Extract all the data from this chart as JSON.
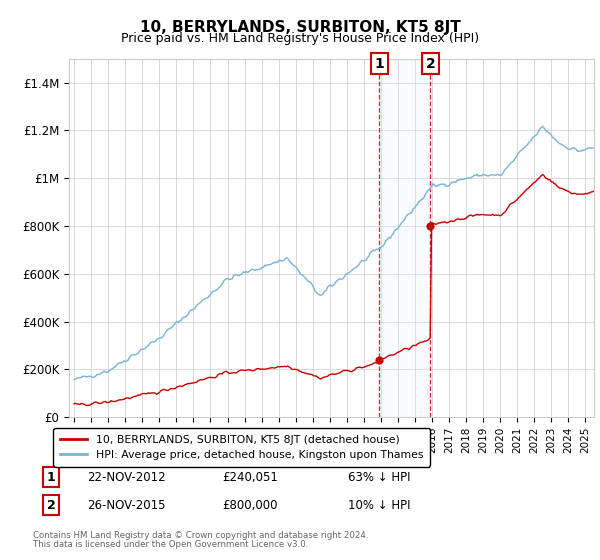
{
  "title": "10, BERRYLANDS, SURBITON, KT5 8JT",
  "subtitle": "Price paid vs. HM Land Registry's House Price Index (HPI)",
  "ylabel_ticks": [
    "£0",
    "£200K",
    "£400K",
    "£600K",
    "£800K",
    "£1M",
    "£1.2M",
    "£1.4M"
  ],
  "ylim": [
    0,
    1500000
  ],
  "yticks": [
    0,
    200000,
    400000,
    600000,
    800000,
    1000000,
    1200000,
    1400000
  ],
  "t1_year": 2012.896,
  "t2_year": 2015.896,
  "t1_price": 240051,
  "t2_price": 800000,
  "hpi_color": "#7ab3d4",
  "price_color": "#cc0000",
  "annotation_box_color": "#cc0000",
  "shading_color": "#ddeeff",
  "legend_entry1": "10, BERRYLANDS, SURBITON, KT5 8JT (detached house)",
  "legend_entry2": "HPI: Average price, detached house, Kingston upon Thames",
  "footnote1": "Contains HM Land Registry data © Crown copyright and database right 2024.",
  "footnote2": "This data is licensed under the Open Government Licence v3.0.",
  "background_color": "#ffffff",
  "grid_color": "#cccccc"
}
